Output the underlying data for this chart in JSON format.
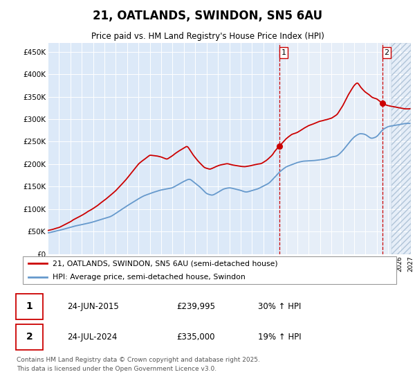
{
  "title": "21, OATLANDS, SWINDON, SN5 6AU",
  "subtitle": "Price paid vs. HM Land Registry's House Price Index (HPI)",
  "legend_line1": "21, OATLANDS, SWINDON, SN5 6AU (semi-detached house)",
  "legend_line2": "HPI: Average price, semi-detached house, Swindon",
  "sale1_label": "1",
  "sale1_date": "24-JUN-2015",
  "sale1_price": "£239,995",
  "sale1_hpi": "30% ↑ HPI",
  "sale2_label": "2",
  "sale2_date": "24-JUL-2024",
  "sale2_price": "£335,000",
  "sale2_hpi": "19% ↑ HPI",
  "footer": "Contains HM Land Registry data © Crown copyright and database right 2025.\nThis data is licensed under the Open Government Licence v3.0.",
  "background_color": "#dce9f8",
  "plot_bg_color": "#dce9f8",
  "highlight_color": "#e8f0fb",
  "red_color": "#cc0000",
  "blue_color": "#6699cc",
  "vline_color": "#cc0000",
  "ylim": [
    0,
    470000
  ],
  "yticks": [
    0,
    50000,
    100000,
    150000,
    200000,
    250000,
    300000,
    350000,
    400000,
    450000
  ],
  "xstart_year": 1995,
  "xend_year": 2027
}
